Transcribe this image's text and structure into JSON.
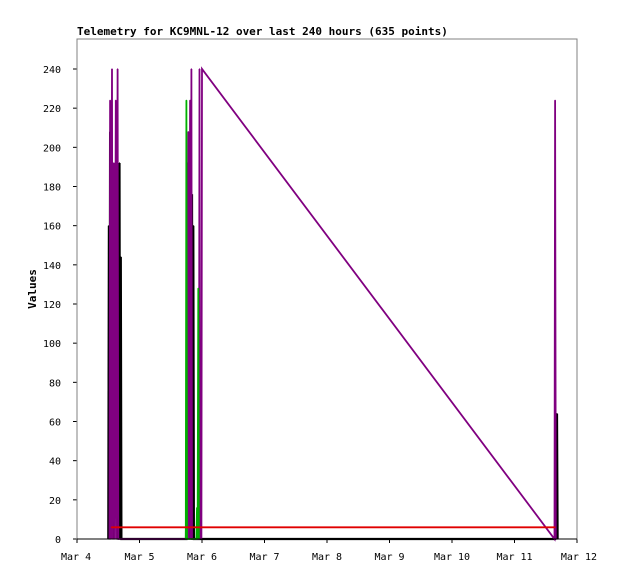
{
  "chart_data": {
    "type": "line",
    "title": "Telemetry for KC9MNL-12 over last 240 hours (635 points)",
    "ylabel": "Values",
    "xlabel": "",
    "ylim": [
      0,
      255
    ],
    "y_ticks": [
      0,
      20,
      40,
      60,
      80,
      100,
      120,
      140,
      160,
      180,
      200,
      220,
      240
    ],
    "x_ticks": [
      "Mar 4",
      "Mar 5",
      "Mar 6",
      "Mar 7",
      "Mar 8",
      "Mar 9",
      "Mar 10",
      "Mar 11",
      "Mar 12"
    ],
    "x_tick_days": [
      4,
      5,
      6,
      7,
      8,
      9,
      10,
      11,
      12
    ],
    "xlim": [
      4.0,
      12.0
    ],
    "grid": false,
    "legend": "none",
    "colors": {
      "black": "#000000",
      "purple": "#800080",
      "green": "#00b000",
      "red": "#e00000"
    },
    "series": [
      {
        "color": "#000000",
        "points": [
          [
            4.5,
            0
          ],
          [
            4.51,
            160
          ],
          [
            4.52,
            0
          ],
          [
            4.53,
            208
          ],
          [
            4.54,
            0
          ],
          [
            4.57,
            192
          ],
          [
            4.58,
            0
          ],
          [
            4.63,
            208
          ],
          [
            4.64,
            0
          ],
          [
            4.66,
            96
          ],
          [
            4.67,
            0
          ],
          [
            4.68,
            192
          ],
          [
            4.69,
            0
          ],
          [
            4.7,
            144
          ],
          [
            4.71,
            0
          ],
          [
            5.75,
            0
          ],
          [
            5.76,
            192
          ],
          [
            5.77,
            0
          ],
          [
            5.79,
            176
          ],
          [
            5.8,
            0
          ],
          [
            5.82,
            192
          ],
          [
            5.83,
            0
          ],
          [
            5.84,
            176
          ],
          [
            5.85,
            0
          ],
          [
            5.86,
            160
          ],
          [
            5.87,
            0
          ],
          [
            11.65,
            0
          ],
          [
            11.66,
            16
          ],
          [
            11.67,
            0
          ],
          [
            11.68,
            64
          ],
          [
            11.69,
            0
          ]
        ]
      },
      {
        "color": "#800080",
        "points": [
          [
            4.52,
            0
          ],
          [
            4.53,
            224
          ],
          [
            4.54,
            0
          ],
          [
            4.56,
            240
          ],
          [
            4.57,
            0
          ],
          [
            4.59,
            192
          ],
          [
            4.6,
            0
          ],
          [
            4.62,
            224
          ],
          [
            4.63,
            0
          ],
          [
            4.65,
            240
          ],
          [
            4.66,
            0
          ],
          [
            5.74,
            0
          ],
          [
            5.75,
            32
          ],
          [
            5.76,
            0
          ],
          [
            5.78,
            208
          ],
          [
            5.79,
            0
          ],
          [
            5.81,
            224
          ],
          [
            5.82,
            0
          ],
          [
            5.83,
            240
          ],
          [
            5.84,
            0
          ],
          [
            5.95,
            0
          ],
          [
            5.96,
            240
          ],
          [
            5.97,
            0
          ],
          [
            5.98,
            64
          ],
          [
            5.99,
            0
          ],
          [
            6.0,
            240
          ],
          [
            11.64,
            0
          ],
          [
            11.65,
            224
          ],
          [
            11.66,
            0
          ]
        ]
      },
      {
        "color": "#00b000",
        "points": [
          [
            5.74,
            0
          ],
          [
            5.75,
            224
          ],
          [
            5.76,
            0
          ],
          [
            5.91,
            0
          ],
          [
            5.92,
            16
          ],
          [
            5.93,
            0
          ],
          [
            5.94,
            128
          ],
          [
            5.95,
            0
          ]
        ]
      },
      {
        "color": "#e00000",
        "points": [
          [
            4.55,
            6
          ],
          [
            11.65,
            6
          ]
        ]
      }
    ]
  }
}
